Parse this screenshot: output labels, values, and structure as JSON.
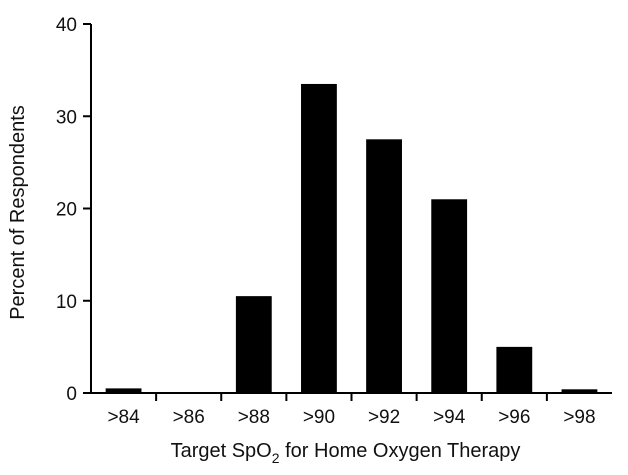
{
  "chart_data": {
    "type": "bar",
    "title": "",
    "xlabel": "Target SpO",
    "xlabel_subscript": "2",
    "xlabel_suffix": " for Home Oxygen Therapy",
    "ylabel": "Percent of Respondents",
    "categories": [
      ">84",
      ">86",
      ">88",
      ">90",
      ">92",
      ">94",
      ">96",
      ">98"
    ],
    "values": [
      0.5,
      0,
      10.5,
      33.5,
      27.5,
      21,
      5,
      0.4
    ],
    "ylim": [
      0,
      40
    ],
    "yticks": [
      "0",
      "10",
      "20",
      "30",
      "40"
    ],
    "grid": false,
    "bar_color": "#000000"
  }
}
